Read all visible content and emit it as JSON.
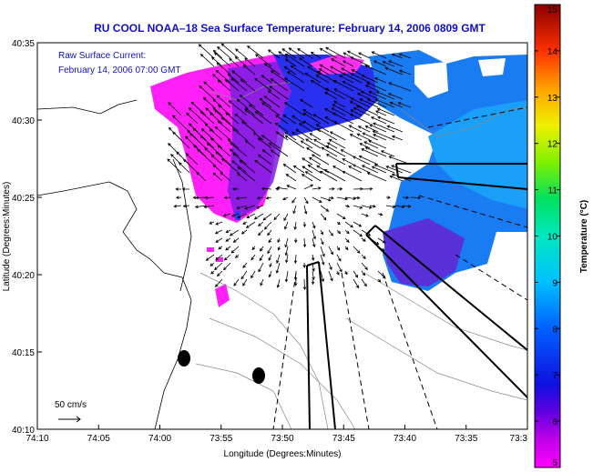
{
  "chart_data": [
    {
      "type": "map",
      "title": "RU COOL  NOAA–18  Sea Surface Temperature:  February 14, 2006 0809 GMT",
      "overlay_label": "Raw Surface Current:",
      "overlay_time": "February 14, 2006 07:00 GMT",
      "xlabel": "Longitude (Degrees:Minutes)",
      "ylabel": "Latitude (Degrees:Minutes)",
      "x_ticks": [
        "74:10",
        "74:05",
        "74:00",
        "73:55",
        "73:50",
        "73:45",
        "73:40",
        "73:35",
        "73:3"
      ],
      "y_ticks": [
        "40:35",
        "40:30",
        "40:25",
        "40:20",
        "40:15",
        "40:10"
      ],
      "xlim": [
        "74:10",
        "73:30"
      ],
      "ylim": [
        "40:10",
        "40:35"
      ],
      "scale_label": "50 cm/s",
      "grid": false,
      "title_color": "#1010c8"
    },
    {
      "type": "colorbar",
      "label": "Temperature (°C)",
      "ticks": [
        "15",
        "14",
        "13",
        "12",
        "11",
        "10",
        "9",
        "8",
        "7",
        "6",
        "5"
      ],
      "range": [
        5,
        15
      ],
      "colormap": "jet-magenta"
    }
  ]
}
